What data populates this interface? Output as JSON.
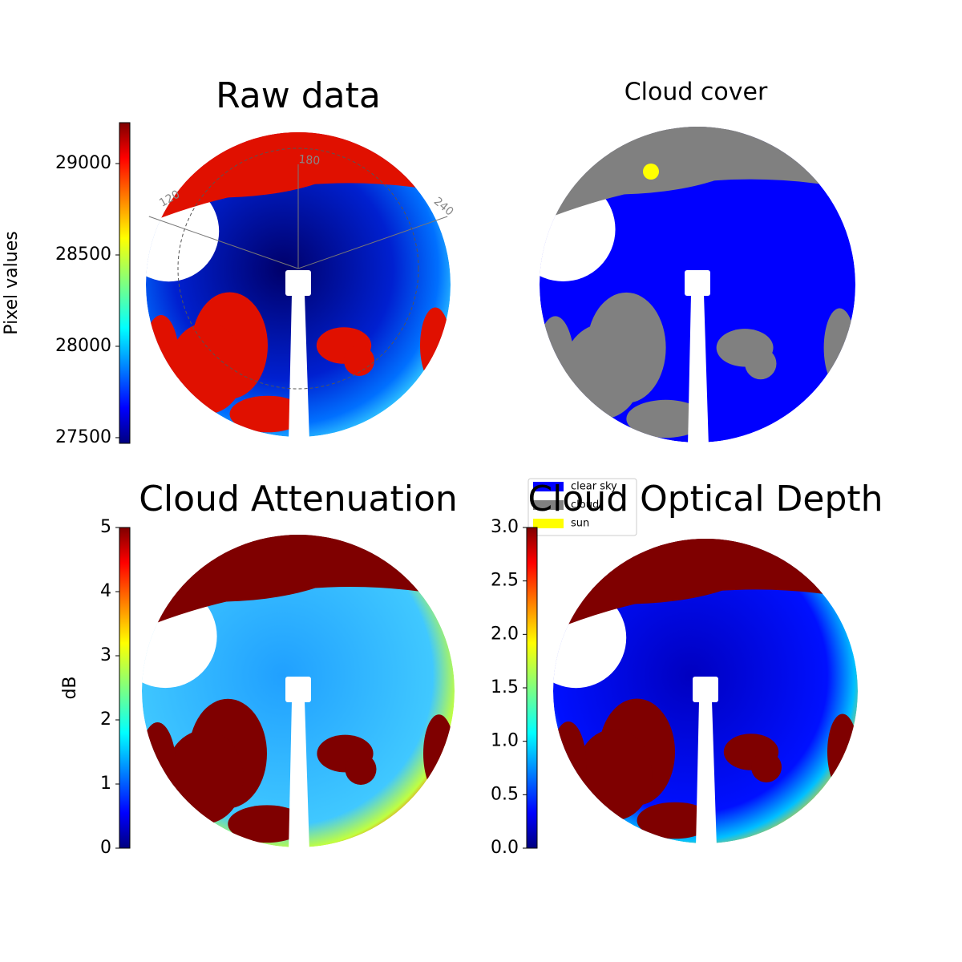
{
  "chart_data": [
    {
      "type": "image",
      "title": "Raw data",
      "annotations": [
        "120",
        "180",
        "240"
      ],
      "colorbar": {
        "label": "Pixel values",
        "colormap": "jet",
        "ylim": [
          27469,
          29224
        ],
        "yticks": [
          27500,
          28000,
          28500,
          29000
        ]
      }
    },
    {
      "type": "image",
      "title": "Cloud cover",
      "series": [
        {
          "name": "clear sky",
          "color": "#0000ff"
        },
        {
          "name": "cloud",
          "color": "#808080"
        },
        {
          "name": "sun",
          "color": "#ffff00"
        }
      ]
    },
    {
      "type": "image",
      "title": "Cloud Attenuation",
      "colorbar": {
        "label": "dB",
        "colormap": "jet",
        "ylim": [
          0,
          5
        ],
        "yticks": [
          0,
          1,
          2,
          3,
          4,
          5
        ]
      }
    },
    {
      "type": "image",
      "title": "Cloud Optical Depth",
      "colorbar": {
        "colormap": "jet",
        "ylim": [
          0,
          3
        ],
        "yticks": [
          {
            "value": 0,
            "label": "0.0"
          },
          {
            "value": 0.5,
            "label": "0.5"
          },
          {
            "value": 1,
            "label": "1.0"
          },
          {
            "value": 1.5,
            "label": "1.5"
          },
          {
            "value": 2,
            "label": "2.0"
          },
          {
            "value": 2.5,
            "label": "2.5"
          },
          {
            "value": 3,
            "label": "3.0"
          }
        ]
      }
    }
  ]
}
